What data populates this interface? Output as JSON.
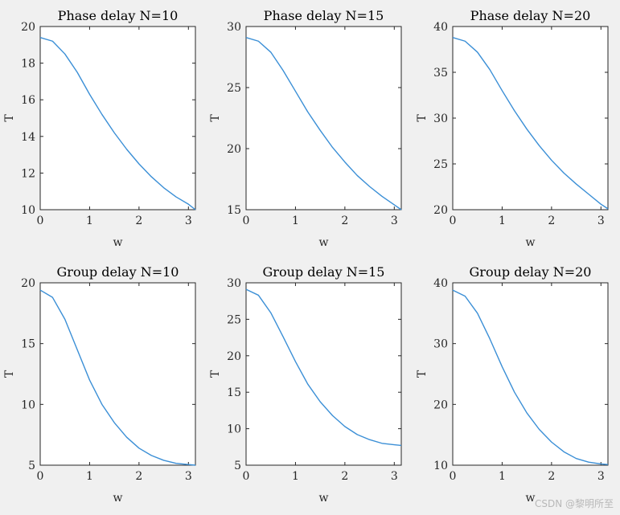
{
  "watermark": "CSDN @黎明所至",
  "style": {
    "line_color": "#3b8fd6",
    "axes_bg": "#ffffff",
    "figure_bg": "#f0f0f0"
  },
  "chart_data": [
    {
      "type": "line",
      "title": "Phase delay N=10",
      "xlabel": "w",
      "ylabel": "T",
      "xlim": [
        0,
        3.1416
      ],
      "ylim": [
        10,
        20
      ],
      "xticks": [
        0,
        1,
        2,
        3
      ],
      "yticks": [
        10,
        12,
        14,
        16,
        18,
        20
      ],
      "grid": false,
      "series": [
        {
          "x": [
            0,
            0.25,
            0.5,
            0.75,
            1.0,
            1.25,
            1.5,
            1.75,
            2.0,
            2.25,
            2.5,
            2.75,
            3.0,
            3.1416
          ],
          "y": [
            19.4,
            19.2,
            18.5,
            17.5,
            16.3,
            15.2,
            14.2,
            13.3,
            12.5,
            11.8,
            11.2,
            10.7,
            10.3,
            10.0
          ]
        }
      ]
    },
    {
      "type": "line",
      "title": "Phase delay N=15",
      "xlabel": "w",
      "ylabel": "T",
      "xlim": [
        0,
        3.1416
      ],
      "ylim": [
        15,
        30
      ],
      "xticks": [
        0,
        1,
        2,
        3
      ],
      "yticks": [
        15,
        20,
        25,
        30
      ],
      "grid": false,
      "series": [
        {
          "x": [
            0,
            0.25,
            0.5,
            0.75,
            1.0,
            1.25,
            1.5,
            1.75,
            2.0,
            2.25,
            2.5,
            2.75,
            3.0,
            3.1416
          ],
          "y": [
            29.1,
            28.8,
            27.9,
            26.4,
            24.7,
            23.0,
            21.5,
            20.1,
            18.9,
            17.8,
            16.9,
            16.1,
            15.4,
            15.0
          ]
        }
      ]
    },
    {
      "type": "line",
      "title": "Phase delay N=20",
      "xlabel": "w",
      "ylabel": "T",
      "xlim": [
        0,
        3.1416
      ],
      "ylim": [
        20,
        40
      ],
      "xticks": [
        0,
        1,
        2,
        3
      ],
      "yticks": [
        20,
        25,
        30,
        35,
        40
      ],
      "grid": false,
      "series": [
        {
          "x": [
            0,
            0.25,
            0.5,
            0.75,
            1.0,
            1.25,
            1.5,
            1.75,
            2.0,
            2.25,
            2.5,
            2.75,
            3.0,
            3.1416
          ],
          "y": [
            38.8,
            38.4,
            37.2,
            35.3,
            33.0,
            30.8,
            28.8,
            27.0,
            25.4,
            24.0,
            22.8,
            21.7,
            20.6,
            20.1
          ]
        }
      ]
    },
    {
      "type": "line",
      "title": "Group delay N=10",
      "xlabel": "w",
      "ylabel": "T",
      "xlim": [
        0,
        3.1416
      ],
      "ylim": [
        5,
        20
      ],
      "xticks": [
        0,
        1,
        2,
        3
      ],
      "yticks": [
        5,
        10,
        15,
        20
      ],
      "grid": false,
      "series": [
        {
          "x": [
            0,
            0.25,
            0.5,
            0.75,
            1.0,
            1.25,
            1.5,
            1.75,
            2.0,
            2.25,
            2.5,
            2.75,
            3.0,
            3.1416
          ],
          "y": [
            19.4,
            18.8,
            17.0,
            14.5,
            12.0,
            10.0,
            8.5,
            7.3,
            6.4,
            5.8,
            5.4,
            5.15,
            5.05,
            5.0
          ]
        }
      ]
    },
    {
      "type": "line",
      "title": "Group delay N=15",
      "xlabel": "w",
      "ylabel": "T",
      "xlim": [
        0,
        3.1416
      ],
      "ylim": [
        5,
        30
      ],
      "xticks": [
        0,
        1,
        2,
        3
      ],
      "yticks": [
        5,
        10,
        15,
        20,
        25,
        30
      ],
      "grid": false,
      "series": [
        {
          "x": [
            0,
            0.25,
            0.5,
            0.75,
            1.0,
            1.25,
            1.5,
            1.75,
            2.0,
            2.25,
            2.5,
            2.75,
            3.0,
            3.1416
          ],
          "y": [
            29.1,
            28.3,
            25.9,
            22.6,
            19.2,
            16.1,
            13.7,
            11.8,
            10.3,
            9.2,
            8.5,
            8.0,
            7.8,
            7.7
          ]
        }
      ]
    },
    {
      "type": "line",
      "title": "Group delay N=20",
      "xlabel": "w",
      "ylabel": "T",
      "xlim": [
        0,
        3.1416
      ],
      "ylim": [
        10,
        40
      ],
      "xticks": [
        0,
        1,
        2,
        3
      ],
      "yticks": [
        10,
        20,
        30,
        40
      ],
      "grid": false,
      "series": [
        {
          "x": [
            0,
            0.25,
            0.5,
            0.75,
            1.0,
            1.25,
            1.5,
            1.75,
            2.0,
            2.25,
            2.5,
            2.75,
            3.0,
            3.1416
          ],
          "y": [
            38.8,
            37.8,
            35.0,
            30.8,
            26.2,
            22.0,
            18.6,
            15.9,
            13.8,
            12.2,
            11.1,
            10.5,
            10.2,
            10.1
          ]
        }
      ]
    }
  ]
}
